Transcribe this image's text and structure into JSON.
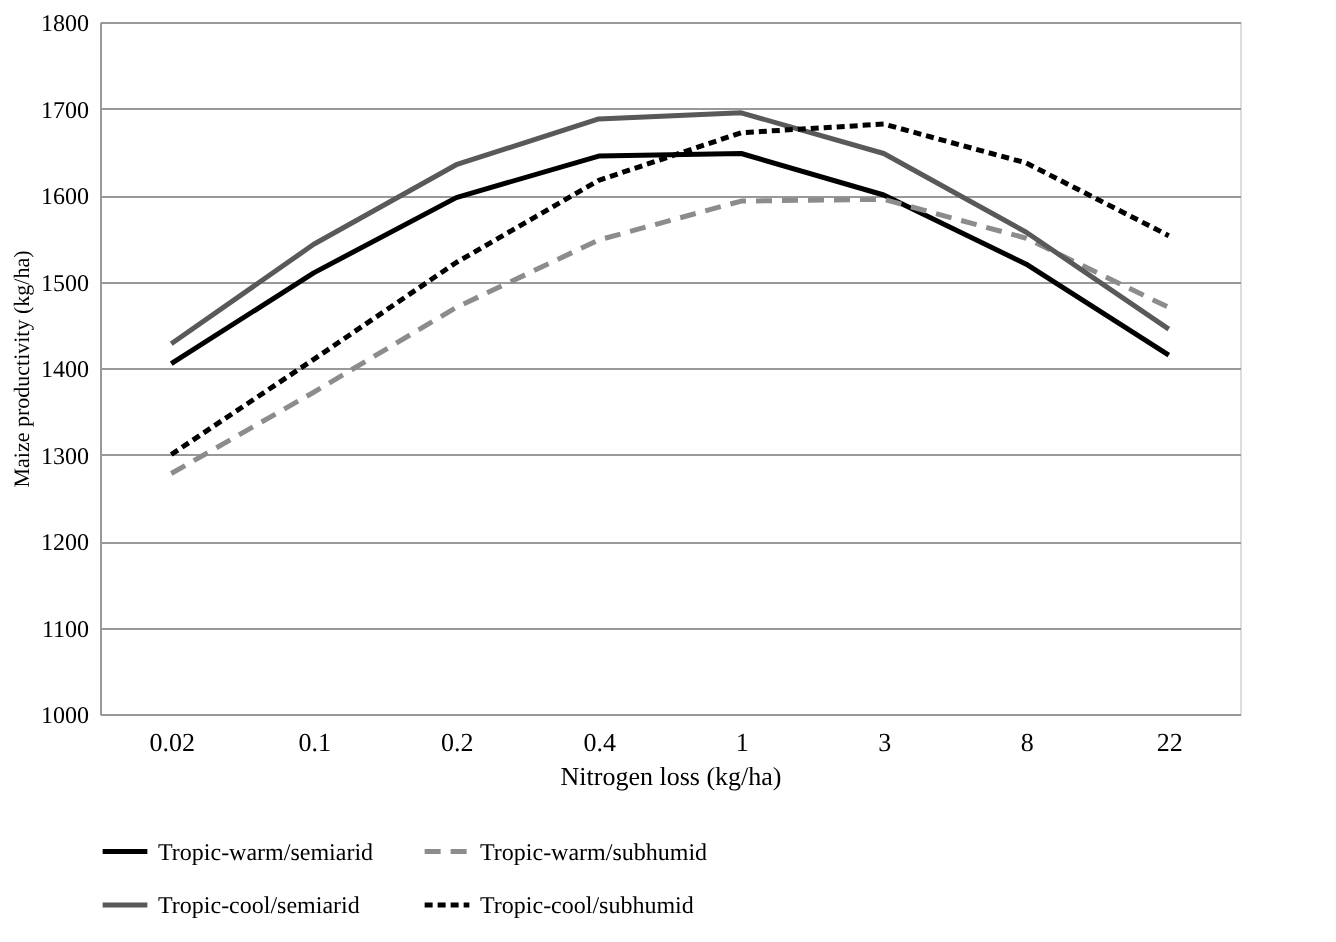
{
  "chart_data": {
    "type": "line",
    "xlabel": "Nitrogen loss (kg/ha)",
    "ylabel": "Maize productivity (kg/ha)",
    "categories": [
      "0.02",
      "0.1",
      "0.2",
      "0.4",
      "1",
      "3",
      "8",
      "22"
    ],
    "series": [
      {
        "name": "Tropic-warm/semiarid",
        "color": "#000000",
        "line_style": "solid",
        "values": [
          1405,
          1510,
          1597,
          1645,
          1648,
          1600,
          1520,
          1415
        ]
      },
      {
        "name": "Tropic-warm/subhumid",
        "color": "#8c8c8c",
        "line_style": "dashed",
        "values": [
          1278,
          1372,
          1470,
          1548,
          1593,
          1595,
          1550,
          1470
        ]
      },
      {
        "name": "Tropic-cool/semiarid",
        "color": "#595959",
        "line_style": "solid",
        "values": [
          1428,
          1543,
          1635,
          1688,
          1695,
          1648,
          1557,
          1445
        ]
      },
      {
        "name": "Tropic-cool/subhumid",
        "color": "#000000",
        "line_style": "dotted",
        "values": [
          1300,
          1410,
          1522,
          1617,
          1672,
          1682,
          1637,
          1553
        ]
      }
    ],
    "ylim": [
      1000,
      1800
    ],
    "yticks": [
      1000,
      1100,
      1200,
      1300,
      1400,
      1500,
      1600,
      1700,
      1800
    ],
    "grid": "y",
    "legend": "bottom",
    "marker": "none"
  }
}
